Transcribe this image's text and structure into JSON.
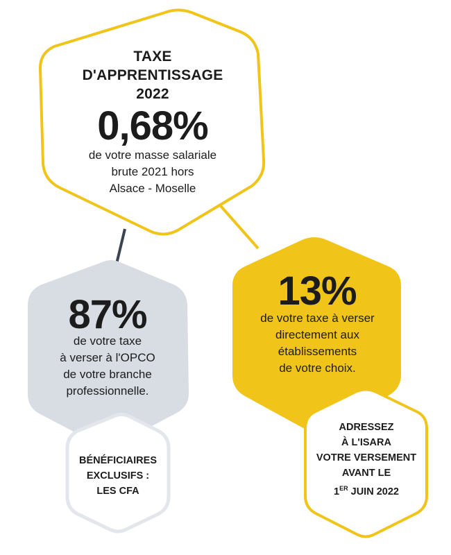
{
  "colors": {
    "yellow": "#f0c419",
    "gray_fill": "#d8dce3",
    "gray_stroke": "#e3e6eb",
    "connector_dark": "#3c4452",
    "text": "#1c1c1c"
  },
  "main": {
    "title_line1": "TAXE",
    "title_line2": "D'APPRENTISSAGE",
    "title_line3": "2022",
    "percent": "0,68%",
    "desc_line1": "de votre masse salariale",
    "desc_line2": "brute 2021 hors",
    "desc_line3": "Alsace - Moselle"
  },
  "left": {
    "percent": "87%",
    "desc_line1": "de votre taxe",
    "desc_line2": "à verser à l'OPCO",
    "desc_line3": "de votre branche",
    "desc_line4": "professionnelle."
  },
  "left_small": {
    "line1": "BÉNÉFICIAIRES",
    "line2": "EXCLUSIFS :",
    "line3": "LES CFA"
  },
  "right": {
    "percent": "13%",
    "desc_line1": "de votre taxe à verser",
    "desc_line2": "directement aux",
    "desc_line3": "établissements",
    "desc_line4": "de votre choix."
  },
  "right_small": {
    "line1": "ADRESSEZ",
    "line2": "À L'ISARA",
    "line3": "VOTRE VERSEMENT",
    "line4": "AVANT LE",
    "date_number": "1",
    "date_superscript": "ER",
    "date_rest": " JUIN 2022"
  }
}
